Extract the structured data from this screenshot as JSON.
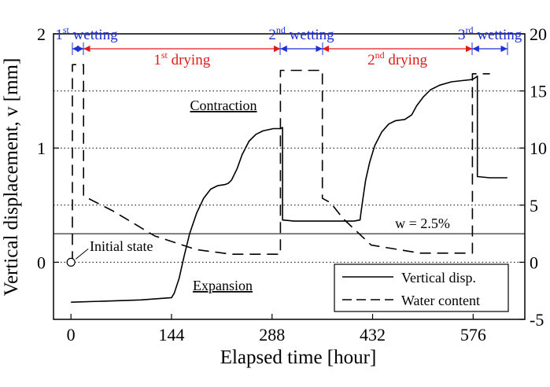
{
  "chart_data": {
    "type": "line",
    "xlabel": "Elapsed time [hour]",
    "ylabel": "Vertical displacement, v [mm]",
    "xlim": [
      -25,
      650
    ],
    "ylim": [
      -0.5,
      2.0
    ],
    "y2lim": [
      -5,
      20
    ],
    "xticks": [
      "0",
      "144",
      "288",
      "432",
      "576"
    ],
    "xtick_values": [
      0,
      144,
      288,
      432,
      576
    ],
    "yticks": [
      "0",
      "1",
      "2"
    ],
    "ytick_values": [
      0,
      1,
      2
    ],
    "y2ticks": [
      "-5",
      "0",
      "5",
      "10",
      "15",
      "20"
    ],
    "y2tick_values": [
      -5,
      0,
      5,
      10,
      15,
      20
    ],
    "dotted_gridlines_y": [
      0,
      0.5,
      1.0,
      1.5
    ],
    "reference_line": {
      "label": "w = 2.5%",
      "y2": 2.5
    },
    "series": [
      {
        "name": "Vertical disp.",
        "axis": "left",
        "style": "solid",
        "x": [
          0,
          50,
          100,
          144,
          148,
          155,
          162,
          170,
          180,
          190,
          200,
          210,
          220,
          225,
          230,
          238,
          245,
          255,
          265,
          275,
          290,
          300,
          303,
          303,
          320,
          340,
          360,
          380,
          395,
          405,
          414,
          415,
          418,
          422,
          428,
          435,
          445,
          455,
          465,
          478,
          488,
          495,
          505,
          515,
          528,
          545,
          560,
          575,
          580,
          582,
          582,
          600,
          625
        ],
        "y": [
          -0.35,
          -0.34,
          -0.33,
          -0.31,
          -0.27,
          -0.14,
          0.05,
          0.25,
          0.43,
          0.56,
          0.64,
          0.67,
          0.68,
          0.69,
          0.72,
          0.82,
          0.94,
          1.06,
          1.12,
          1.15,
          1.17,
          1.17,
          1.18,
          0.37,
          0.36,
          0.36,
          0.36,
          0.36,
          0.36,
          0.36,
          0.37,
          0.42,
          0.55,
          0.72,
          0.88,
          1.02,
          1.14,
          1.21,
          1.24,
          1.25,
          1.29,
          1.37,
          1.45,
          1.51,
          1.55,
          1.58,
          1.59,
          1.6,
          1.62,
          1.63,
          0.75,
          0.74,
          0.74
        ]
      },
      {
        "name": "Water content",
        "axis": "right",
        "style": "dashed",
        "x": [
          2,
          2,
          18,
          18,
          18,
          60,
          120,
          180,
          230,
          300,
          300,
          300,
          325,
          360,
          360,
          360,
          372,
          390,
          430,
          500,
          575,
          575,
          575,
          600
        ],
        "y2": [
          0,
          17.3,
          17.3,
          12,
          5.8,
          4.5,
          2.3,
          1.1,
          0.7,
          0.7,
          6,
          16.8,
          16.8,
          16.8,
          12,
          5.6,
          5.2,
          3.8,
          1.5,
          0.8,
          0.8,
          8,
          16.5,
          16.5
        ]
      }
    ],
    "markers": [
      {
        "label": "Initial state",
        "x": 0,
        "y": 0
      }
    ],
    "annotations": [
      "Contraction",
      "Expansion"
    ],
    "phases": [
      {
        "name": "wetting",
        "prefix": "1",
        "sup": "st",
        "color": "blue",
        "x0": 2,
        "x1": 18
      },
      {
        "name": "drying",
        "prefix": "1",
        "sup": "st",
        "color": "red",
        "x0": 18,
        "x1": 300
      },
      {
        "name": "wetting",
        "prefix": "2",
        "sup": "nd",
        "color": "blue",
        "x0": 300,
        "x1": 360
      },
      {
        "name": "drying",
        "prefix": "2",
        "sup": "nd",
        "color": "red",
        "x0": 360,
        "x1": 575
      },
      {
        "name": "wetting",
        "prefix": "3",
        "sup": "rd",
        "color": "blue",
        "x0": 575,
        "x1": 625
      }
    ],
    "legend": {
      "position": "bottom-right",
      "items": [
        "Vertical disp.",
        "Water content"
      ]
    },
    "colors": {
      "wetting": "#1f2fd6",
      "drying": "#e01b1b",
      "line": "#000000"
    }
  }
}
